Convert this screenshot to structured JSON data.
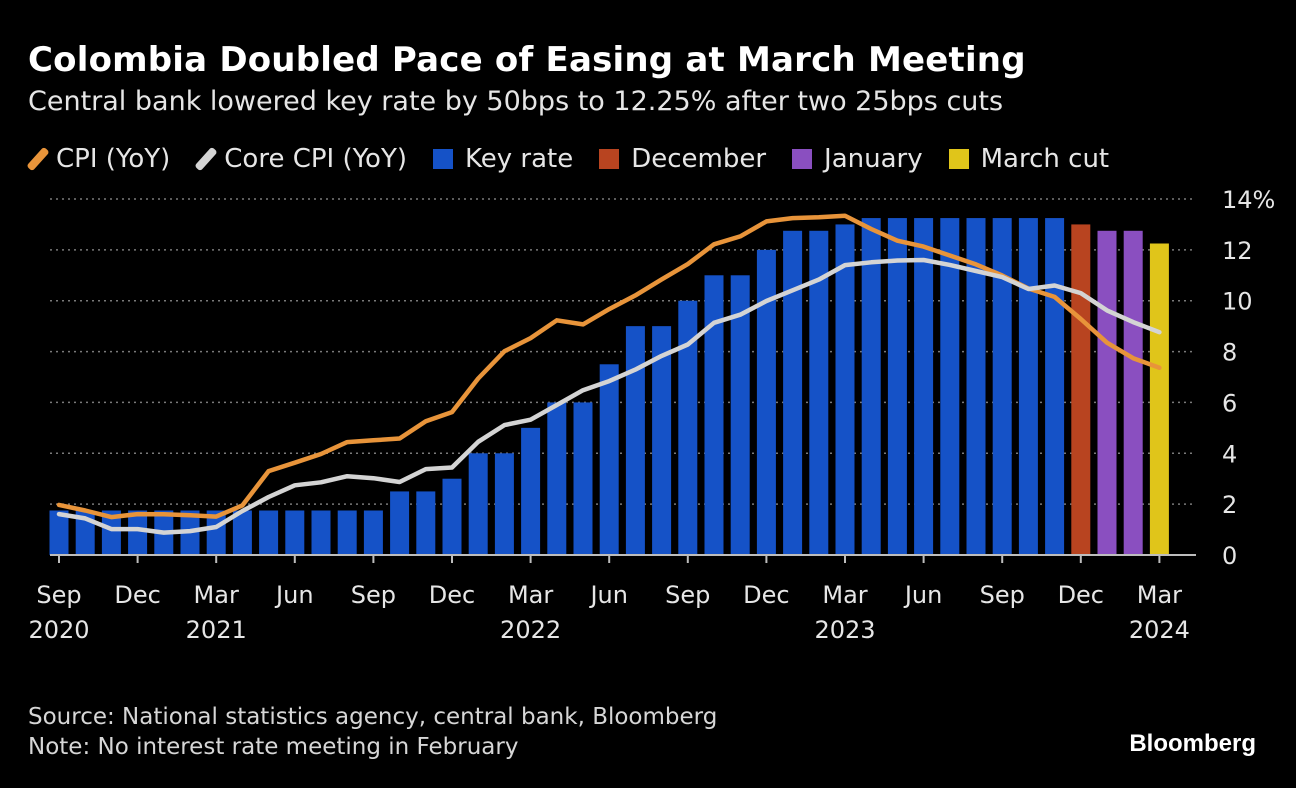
{
  "header": {
    "title": "Colombia Doubled Pace of Easing at March Meeting",
    "subtitle": "Central bank lowered key rate by 50bps to 12.25% after two 25bps cuts"
  },
  "legend": [
    {
      "label": "CPI (YoY)",
      "kind": "line",
      "color": "#e8943a"
    },
    {
      "label": "Core CPI (YoY)",
      "kind": "line",
      "color": "#d4d4d4"
    },
    {
      "label": "Key rate",
      "kind": "box",
      "color": "#1552c7"
    },
    {
      "label": "December",
      "kind": "box",
      "color": "#b84420"
    },
    {
      "label": "January",
      "kind": "box",
      "color": "#8a4fc0"
    },
    {
      "label": "March cut",
      "kind": "box",
      "color": "#e0c51a"
    }
  ],
  "footer": {
    "source": "Source: National statistics agency, central bank, Bloomberg",
    "note": "Note: No interest rate meeting in February",
    "brand": "Bloomberg"
  },
  "chart_data": {
    "type": "bar",
    "title": "Colombia Doubled Pace of Easing at March Meeting",
    "ylim": [
      0,
      14
    ],
    "yticks": [
      0,
      2,
      4,
      6,
      8,
      10,
      12,
      14
    ],
    "ytick_labels": [
      "0",
      "2",
      "4",
      "6",
      "8",
      "10",
      "12",
      "14%"
    ],
    "grid": true,
    "xticks": [
      {
        "index": 0,
        "month": "Sep",
        "year": "2020"
      },
      {
        "index": 3,
        "month": "Dec",
        "year": ""
      },
      {
        "index": 6,
        "month": "Mar",
        "year": "2021"
      },
      {
        "index": 9,
        "month": "Jun",
        "year": ""
      },
      {
        "index": 12,
        "month": "Sep",
        "year": ""
      },
      {
        "index": 15,
        "month": "Dec",
        "year": ""
      },
      {
        "index": 18,
        "month": "Mar",
        "year": "2022"
      },
      {
        "index": 21,
        "month": "Jun",
        "year": ""
      },
      {
        "index": 24,
        "month": "Sep",
        "year": ""
      },
      {
        "index": 27,
        "month": "Dec",
        "year": ""
      },
      {
        "index": 30,
        "month": "Mar",
        "year": "2023"
      },
      {
        "index": 33,
        "month": "Jun",
        "year": ""
      },
      {
        "index": 36,
        "month": "Sep",
        "year": ""
      },
      {
        "index": 39,
        "month": "Dec",
        "year": ""
      },
      {
        "index": 42,
        "month": "Mar",
        "year": "2024"
      }
    ],
    "bar_series": [
      {
        "name": "Key rate",
        "color": "#1552c7",
        "start_index": 0,
        "values": [
          1.75,
          1.75,
          1.75,
          1.75,
          1.75,
          1.75,
          1.75,
          1.75,
          1.75,
          1.75,
          1.75,
          1.75,
          1.75,
          2.5,
          2.5,
          3.0,
          4.0,
          4.0,
          5.0,
          6.0,
          6.0,
          7.5,
          9.0,
          9.0,
          10.0,
          11.0,
          11.0,
          12.0,
          12.75,
          12.75,
          13.0,
          13.25,
          13.25,
          13.25,
          13.25,
          13.25,
          13.25,
          13.25,
          13.25
        ]
      },
      {
        "name": "December",
        "color": "#b84420",
        "start_index": 39,
        "values": [
          13.0
        ]
      },
      {
        "name": "January",
        "color": "#8a4fc0",
        "start_index": 40,
        "values": [
          12.75,
          12.75
        ]
      },
      {
        "name": "March cut",
        "color": "#e0c51a",
        "start_index": 42,
        "values": [
          12.25
        ]
      }
    ],
    "line_series": [
      {
        "name": "CPI (YoY)",
        "color": "#e8943a",
        "values": [
          1.97,
          1.75,
          1.49,
          1.61,
          1.6,
          1.56,
          1.51,
          1.95,
          3.3,
          3.63,
          3.97,
          4.44,
          4.51,
          4.58,
          5.26,
          5.62,
          6.94,
          8.01,
          8.53,
          9.23,
          9.07,
          9.67,
          10.21,
          10.84,
          11.44,
          12.22,
          12.53,
          13.12,
          13.25,
          13.28,
          13.34,
          12.82,
          12.36,
          12.13,
          11.78,
          11.43,
          10.99,
          10.48,
          10.15,
          9.28,
          8.35,
          7.74,
          7.36
        ]
      },
      {
        "name": "Core CPI (YoY)",
        "color": "#d4d4d4",
        "values": [
          1.61,
          1.44,
          1.02,
          1.02,
          0.88,
          0.94,
          1.1,
          1.73,
          2.28,
          2.74,
          2.86,
          3.1,
          3.02,
          2.87,
          3.38,
          3.44,
          4.45,
          5.11,
          5.32,
          5.9,
          6.48,
          6.84,
          7.29,
          7.83,
          8.28,
          9.13,
          9.45,
          9.99,
          10.41,
          10.83,
          11.4,
          11.51,
          11.58,
          11.6,
          11.41,
          11.17,
          10.93,
          10.46,
          10.6,
          10.3,
          9.62,
          9.16,
          8.76
        ]
      }
    ]
  }
}
